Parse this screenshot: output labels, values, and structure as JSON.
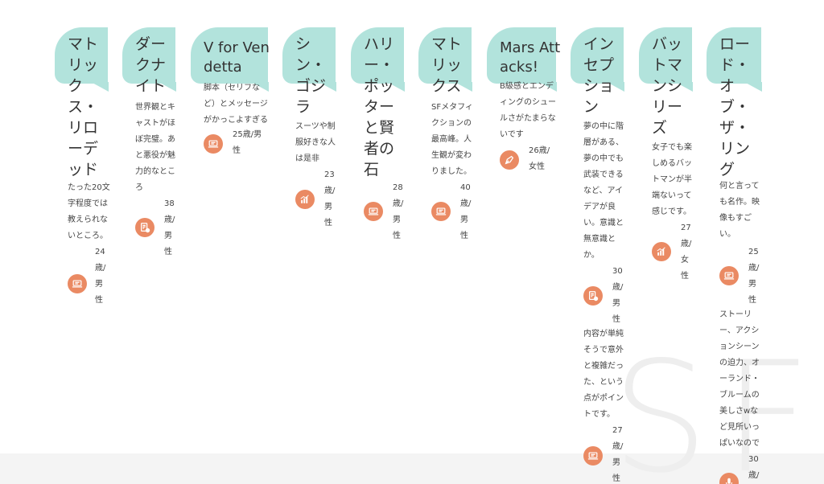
{
  "background_text": "SF",
  "colors": {
    "bubble": "#b2e3dc",
    "badge": "#ea8a63",
    "footer": "#f4f4f4",
    "text": "#444444"
  },
  "cards": [
    {
      "title": "マトリックス・リローデッド",
      "reviews": [
        {
          "text": "たった20文字程度では教えられないところ。",
          "age": "24歳/男性",
          "icon": "laptop-icon"
        }
      ]
    },
    {
      "title": "ダークナイト",
      "reviews": [
        {
          "text": "世界観とキャストがほぼ完璧。あと悪役が魅力的なところ",
          "age": "38歳/男性",
          "icon": "document-icon"
        }
      ]
    },
    {
      "title": "V for Vendetta",
      "reviews": [
        {
          "text": "脚本（セリフなど）とメッセージがかっこよすぎる",
          "age": "25歳/男性",
          "icon": "laptop-icon"
        }
      ]
    },
    {
      "title": "シン・ゴジラ",
      "reviews": [
        {
          "text": "スーツや制服好きな人は是非",
          "age": "23歳/男性",
          "icon": "chart-icon"
        }
      ]
    },
    {
      "title": "ハリー・ポッターと賢者の石",
      "reviews": [
        {
          "text": "",
          "age": "28歳/男性",
          "icon": "laptop-icon"
        }
      ]
    },
    {
      "title": "マトリックス",
      "reviews": [
        {
          "text": "SFメタフィクションの最高峰。人生観が変わりました。",
          "age": "40歳/男性",
          "icon": "laptop-icon"
        }
      ]
    },
    {
      "title": "Mars Attacks!",
      "reviews": [
        {
          "text": "B級感とエンディングのシュールさがたまらないです",
          "age": "26歳/女性",
          "icon": "pen-icon"
        }
      ]
    },
    {
      "title": "インセプション",
      "reviews": [
        {
          "text": "夢の中に階層がある、夢の中でも武装できるなど、アイデアが良い。意識と無意識とか。",
          "age": "30歳/男性",
          "icon": "document-icon"
        },
        {
          "text": "内容が単純そうで意外と複雑だった、という点がポイントです。",
          "age": "27歳/男性",
          "icon": "laptop-icon"
        }
      ]
    },
    {
      "title": "バットマンシリーズ",
      "reviews": [
        {
          "text": "女子でも楽しめるバットマンが半端ないって感じです。",
          "age": "27歳/女性",
          "icon": "chart-icon"
        }
      ]
    },
    {
      "title": "ロード・オブ・ザ・リング",
      "reviews": [
        {
          "text": "何と言っても名作。映像もすごい。",
          "age": "25歳/男性",
          "icon": "laptop-icon"
        },
        {
          "text": "ストーリー、アクションシーンの迫力、オーランド・ブルームの美しさwなど見所いっぱいなので",
          "age": "30歳/",
          "icon": "mic-icon"
        }
      ]
    }
  ]
}
